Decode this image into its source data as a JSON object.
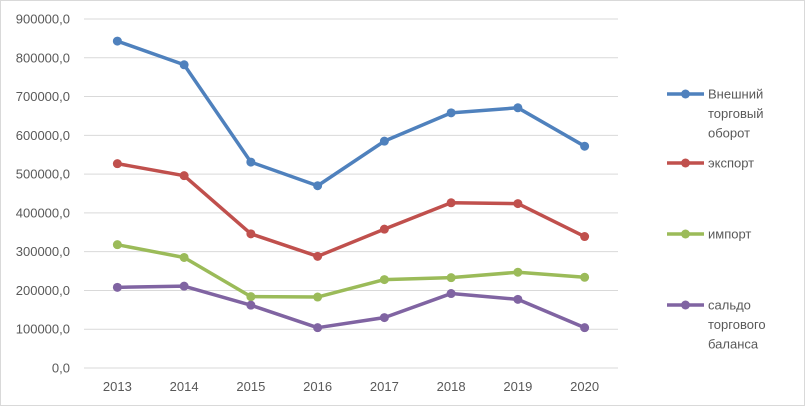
{
  "chart_data": {
    "type": "line",
    "categories": [
      "2013",
      "2014",
      "2015",
      "2016",
      "2017",
      "2018",
      "2019",
      "2020"
    ],
    "ylim": [
      0,
      900000
    ],
    "ytick_labels": [
      "0,0",
      "100000,0",
      "200000,0",
      "300000,0",
      "400000,0",
      "500000,0",
      "600000,0",
      "700000,0",
      "800000,0",
      "900000,0"
    ],
    "grid": true,
    "legend_position": "right",
    "series": [
      {
        "name": "Внешний торговый оборот",
        "name_lines": [
          "Внешний",
          "торговый",
          "оборот"
        ],
        "color": "#4f81bd",
        "values": [
          843000,
          782000,
          531000,
          470000,
          585000,
          658000,
          671000,
          572000
        ]
      },
      {
        "name": "экспорт",
        "name_lines": [
          "экспорт"
        ],
        "color": "#c0504d",
        "values": [
          527000,
          496000,
          346000,
          288000,
          358000,
          426000,
          424000,
          339000
        ]
      },
      {
        "name": "импорт",
        "name_lines": [
          "импорт"
        ],
        "color": "#9bbb59",
        "values": [
          318000,
          285000,
          184000,
          183000,
          228000,
          233000,
          247000,
          234000
        ]
      },
      {
        "name": "сальдо торгового баланса",
        "name_lines": [
          "сальдо",
          "торгового",
          "баланса"
        ],
        "color": "#8064a2",
        "values": [
          208000,
          211000,
          162000,
          104000,
          130000,
          192000,
          177000,
          104000
        ]
      }
    ]
  }
}
